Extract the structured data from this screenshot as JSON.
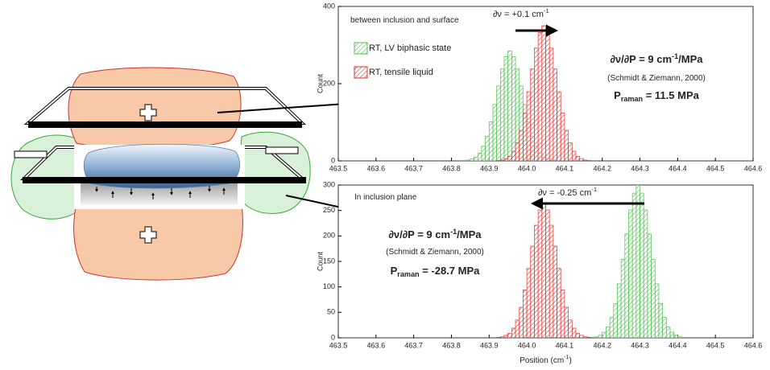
{
  "chart_data": [
    {
      "type": "histogram",
      "annotations": [
        {
          "text": "between inclusion and surface"
        },
        {
          "text": "∂ν = +0.1 cm",
          "sup": "-1"
        },
        {
          "text": "∂ν/∂P = 9 cm",
          "sup": "-1",
          "after": "/MPa"
        },
        {
          "text": "(Schmidt & Ziemann, 2000)"
        },
        {
          "text": "P",
          "sub": "raman",
          "after": " = 11.5 MPa"
        }
      ],
      "ylabel": "Count",
      "bins": [
        463.8,
        463.81,
        463.82,
        463.83,
        463.84,
        463.85,
        463.86,
        463.87,
        463.88,
        463.89,
        463.9,
        463.91,
        463.92,
        463.93,
        463.94,
        463.95,
        463.96,
        463.97,
        463.98,
        463.99,
        464.0,
        464.01,
        464.02,
        464.03,
        464.04,
        464.05,
        464.06,
        464.07,
        464.08,
        464.09,
        464.1,
        464.11,
        464.12,
        464.13,
        464.14,
        464.15,
        464.16,
        464.17,
        464.18,
        464.19,
        464.2
      ],
      "series": [
        {
          "name": "RT, LV biphasic state",
          "color": "#4cc04c",
          "values": [
            0,
            0,
            0,
            1,
            2,
            5,
            10,
            20,
            38,
            64,
            101,
            146,
            194,
            238,
            270,
            285,
            270,
            238,
            194,
            146,
            101,
            64,
            38,
            20,
            10,
            5,
            2,
            1,
            0,
            0,
            0,
            0,
            0,
            0,
            0,
            0,
            0,
            0,
            0,
            0
          ]
        },
        {
          "name": "RT, tensile liquid",
          "color": "#e03030",
          "values": [
            0,
            0,
            0,
            0,
            0,
            0,
            0,
            0,
            0,
            0,
            0,
            0,
            1,
            2,
            6,
            12,
            25,
            47,
            79,
            124,
            179,
            238,
            292,
            332,
            350,
            332,
            292,
            238,
            179,
            124,
            79,
            47,
            25,
            12,
            6,
            2,
            1,
            0,
            0,
            0
          ]
        }
      ],
      "xlim": [
        463.5,
        464.6
      ],
      "xticks": [
        463.5,
        463.6,
        463.7,
        463.8,
        463.9,
        {
          "value": 464,
          "label": "464.0"
        },
        464.1,
        464.2,
        464.3,
        464.4,
        464.5,
        464.6
      ],
      "ylim": [
        0,
        400
      ],
      "yticks": [
        0,
        200,
        400
      ],
      "legend": "upper left"
    },
    {
      "type": "histogram",
      "annotations": [
        {
          "text": "In  inclusion plane"
        },
        {
          "text": "∂ν = -0.25 cm",
          "sup": "-1"
        },
        {
          "text": "∂ν/∂P = 9 cm",
          "sup": "-1",
          "after": "/MPa"
        },
        {
          "text": "(Schmidt & Ziemann, 2000)"
        },
        {
          "text": "P",
          "sub": "raman",
          "after": " = -28.7 MPa"
        }
      ],
      "xlabel": {
        "text": "Position (cm",
        "sup": "-1",
        "after": ")"
      },
      "ylabel": "Count",
      "bins": [
        463.86,
        463.87,
        463.88,
        463.89,
        463.9,
        463.91,
        463.92,
        463.93,
        463.94,
        463.95,
        463.96,
        463.97,
        463.98,
        463.99,
        464.0,
        464.01,
        464.02,
        464.03,
        464.04,
        464.05,
        464.06,
        464.07,
        464.08,
        464.09,
        464.1,
        464.11,
        464.12,
        464.13,
        464.14,
        464.15,
        464.16,
        464.17,
        464.18,
        464.19,
        464.2,
        464.21,
        464.22,
        464.23,
        464.24,
        464.25,
        464.26,
        464.27,
        464.28,
        464.29,
        464.3,
        464.31,
        464.32,
        464.33,
        464.34,
        464.35,
        464.36,
        464.37,
        464.38,
        464.39,
        464.4,
        464.41,
        464.42,
        464.43,
        464.44,
        464.45,
        464.46
      ],
      "series": [
        {
          "color": "#e03030",
          "values": [
            0,
            0,
            0,
            0,
            0,
            0,
            1,
            2,
            5,
            9,
            19,
            35,
            60,
            94,
            136,
            180,
            221,
            251,
            265,
            251,
            221,
            180,
            136,
            94,
            60,
            35,
            19,
            9,
            5,
            2,
            1,
            0,
            0,
            0,
            0,
            0,
            0,
            0,
            0,
            0,
            0,
            0,
            0,
            0,
            0,
            0,
            0,
            0,
            0,
            0,
            0,
            0,
            0,
            0,
            0,
            0,
            0,
            0,
            0,
            0
          ]
        },
        {
          "color": "#4cc04c",
          "values": [
            0,
            0,
            0,
            0,
            0,
            0,
            0,
            0,
            0,
            0,
            0,
            0,
            0,
            0,
            0,
            0,
            0,
            0,
            0,
            0,
            0,
            0,
            0,
            0,
            0,
            0,
            0,
            0,
            0,
            0,
            0,
            1,
            2,
            5,
            11,
            21,
            40,
            67,
            106,
            154,
            204,
            251,
            284,
            300,
            284,
            251,
            204,
            154,
            106,
            67,
            40,
            21,
            11,
            5,
            2,
            1,
            0,
            0,
            0,
            0
          ]
        }
      ],
      "xlim": [
        463.5,
        464.6
      ],
      "xticks": [
        463.5,
        463.6,
        463.7,
        463.8,
        463.9,
        {
          "value": 464,
          "label": "464.0"
        },
        464.1,
        464.2,
        464.3,
        464.4,
        464.5,
        464.6
      ],
      "ylim": [
        0,
        300
      ],
      "yticks": [
        0,
        50,
        100,
        150,
        200,
        250,
        300
      ]
    }
  ]
}
